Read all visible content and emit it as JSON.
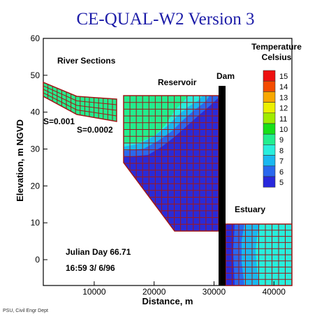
{
  "title": "CE-QUAL-W2 Version 3",
  "axes": {
    "xlabel": "Distance, m",
    "ylabel": "Elevation, m NGVD",
    "xlim": [
      1500,
      43000
    ],
    "ylim": [
      -7,
      60
    ],
    "xticks": [
      10000,
      20000,
      30000,
      40000
    ],
    "yticks": [
      0,
      10,
      20,
      30,
      40,
      50,
      60
    ]
  },
  "annotations": {
    "river_sections": "River Sections",
    "reservoir": "Reservoir",
    "dam": "Dam",
    "estuary": "Estuary",
    "slope_1": "S=0.001",
    "slope_2": "S=0.0002",
    "julian_day": "Julian Day  66.71",
    "datetime": "16:59   3/ 6/96"
  },
  "legend": {
    "title_line1": "Temperature",
    "title_line2": "Celsius",
    "labels": [
      "15",
      "14",
      "13",
      "12",
      "11",
      "10",
      "9",
      "8",
      "7",
      "6",
      "5"
    ],
    "colors": [
      "#ee1111",
      "#f44b00",
      "#f8a800",
      "#ecf000",
      "#a0ec00",
      "#18e018",
      "#22ee8e",
      "#28eedc",
      "#1ab8f0",
      "#2a68ee",
      "#2828dc"
    ]
  },
  "colors": {
    "grid_line": "#a01818",
    "dam": "#000000",
    "warm_surface": "#22ee8e",
    "cold_water": "#2a2ad8",
    "title": "#1c1ca8"
  },
  "footer": "PSU, Civil Engr Dept"
}
